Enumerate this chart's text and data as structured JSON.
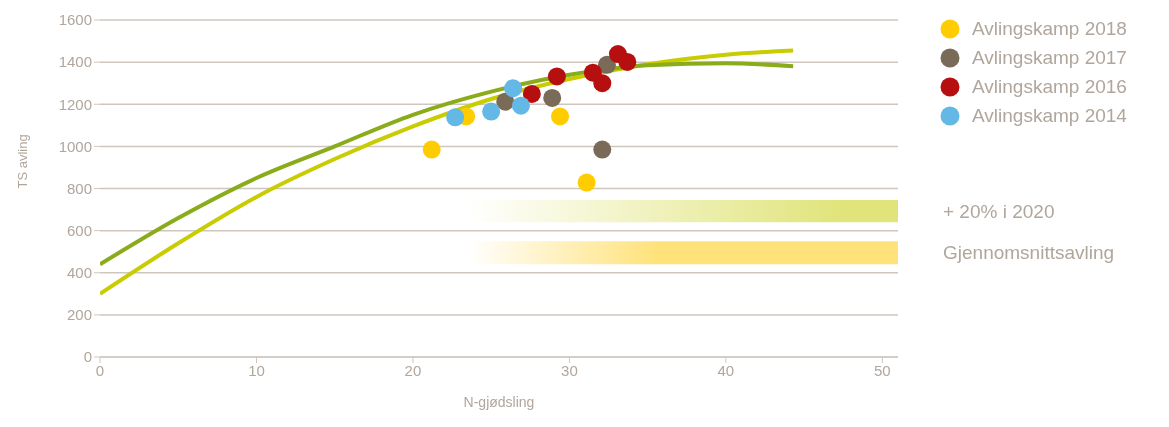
{
  "chart_data": {
    "type": "scatter",
    "xlabel": "N-gjødsling",
    "ylabel": "TS avling",
    "xlim": [
      0,
      51
    ],
    "xticks": [
      0,
      10,
      20,
      30,
      40,
      50
    ],
    "ylim": [
      0,
      1600
    ],
    "yticks": [
      0,
      200,
      400,
      600,
      800,
      1000,
      1200,
      1400,
      1600
    ],
    "grid": "y",
    "legend": "top right",
    "series": [
      {
        "type": "line",
        "color": "#c8cc00",
        "marker": "none",
        "x": [
          0,
          5,
          10,
          15,
          20,
          25,
          30,
          35,
          40,
          44.3
        ],
        "values": [
          300,
          540,
          760,
          940,
          1095,
          1225,
          1320,
          1390,
          1435,
          1455
        ]
      },
      {
        "type": "line",
        "color": "#8aab1a",
        "marker": "none",
        "x": [
          0,
          5,
          10,
          15,
          20,
          25,
          30,
          35,
          40,
          44.3
        ],
        "values": [
          440,
          660,
          850,
          1000,
          1150,
          1260,
          1340,
          1385,
          1395,
          1380
        ]
      },
      {
        "name": "Avlingskamp 2018",
        "color": "#ffcc00",
        "marker": "circle",
        "x": [
          21.2,
          23.4,
          29.4,
          31.1
        ],
        "values": [
          985,
          1142,
          1142,
          828
        ]
      },
      {
        "name": "Avlingskamp 2017",
        "color": "#7a6a58",
        "marker": "circle",
        "x": [
          25.9,
          28.9,
          32.4,
          32.1
        ],
        "values": [
          1212,
          1230,
          1387,
          985
        ]
      },
      {
        "name": "Avlingskamp 2016",
        "color": "#b50f0f",
        "marker": "circle",
        "x": [
          27.6,
          29.2,
          31.5,
          32.1,
          33.1,
          33.7
        ],
        "values": [
          1249,
          1332,
          1350,
          1300,
          1438,
          1401
        ]
      },
      {
        "name": "Avlingskamp 2014",
        "color": "#64b8e6",
        "marker": "circle",
        "x": [
          22.7,
          25.0,
          26.4,
          26.9
        ],
        "values": [
          1138,
          1165,
          1276,
          1193
        ]
      }
    ],
    "bands": [
      {
        "axis": "y",
        "from": 640,
        "to": 745,
        "label": "+ 20% i 2020",
        "color": "#e0e47a"
      },
      {
        "axis": "y",
        "from": 440,
        "to": 550,
        "label": "Gjennomsnittsavling",
        "color": "#ffe27a"
      }
    ]
  }
}
